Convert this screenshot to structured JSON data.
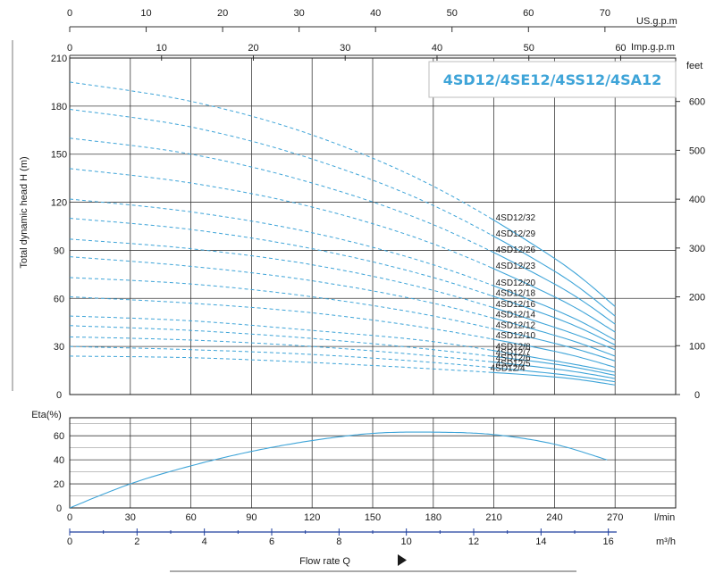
{
  "chart_data": [
    {
      "type": "line",
      "title": "4SD12/4SE12/4SS12/4SA12",
      "ylabel": "Total dynamic head H (m)",
      "ylabel_right": "feet",
      "x_unit": "l/min",
      "xlim": [
        0,
        300
      ],
      "ylim": [
        0,
        210
      ],
      "yticks": [
        0,
        30,
        60,
        90,
        120,
        150,
        180,
        210
      ],
      "feet_ticks": [
        0,
        100,
        200,
        300,
        400,
        500,
        600
      ],
      "us_gpm": {
        "label": "US.g.p.m",
        "ticks": [
          0,
          10,
          20,
          30,
          40,
          50,
          60,
          70
        ]
      },
      "imp_gpm": {
        "label": "Imp.g.p.m",
        "ticks": [
          0,
          10,
          20,
          30,
          40,
          50,
          60
        ]
      },
      "grid": true,
      "dashed_below_x": 210,
      "series_color": "#3ea4d8",
      "series": [
        {
          "name": "4SD12/32",
          "x": [
            0,
            60,
            120,
            180,
            240,
            270
          ],
          "y": [
            195,
            183,
            162,
            130,
            85,
            55
          ]
        },
        {
          "name": "4SD12/29",
          "x": [
            0,
            60,
            120,
            180,
            240,
            270
          ],
          "y": [
            178,
            167,
            147,
            118,
            77,
            49
          ]
        },
        {
          "name": "4SD12/26",
          "x": [
            0,
            60,
            120,
            180,
            240,
            270
          ],
          "y": [
            160,
            150,
            132,
            106,
            69,
            44
          ]
        },
        {
          "name": "4SD12/23",
          "x": [
            0,
            60,
            120,
            180,
            240,
            270
          ],
          "y": [
            141,
            132,
            117,
            94,
            61,
            39
          ]
        },
        {
          "name": "4SD12/20",
          "x": [
            0,
            60,
            120,
            180,
            240,
            270
          ],
          "y": [
            122,
            114,
            101,
            81,
            53,
            34
          ]
        },
        {
          "name": "4SD12/18",
          "x": [
            0,
            60,
            120,
            180,
            240,
            270
          ],
          "y": [
            110,
            103,
            91,
            73,
            48,
            31
          ]
        },
        {
          "name": "4SD12/16",
          "x": [
            0,
            60,
            120,
            180,
            240,
            270
          ],
          "y": [
            97,
            91,
            81,
            65,
            42,
            28
          ]
        },
        {
          "name": "4SD12/14",
          "x": [
            0,
            60,
            120,
            180,
            240,
            270
          ],
          "y": [
            86,
            80,
            71,
            57,
            37,
            24
          ]
        },
        {
          "name": "4SD12/12",
          "x": [
            0,
            60,
            120,
            180,
            240,
            270
          ],
          "y": [
            73,
            69,
            61,
            49,
            32,
            21
          ]
        },
        {
          "name": "4SD12/10",
          "x": [
            0,
            60,
            120,
            180,
            240,
            270
          ],
          "y": [
            61,
            57,
            51,
            41,
            27,
            17
          ]
        },
        {
          "name": "4SD12/8",
          "x": [
            0,
            60,
            120,
            180,
            240,
            270
          ],
          "y": [
            49,
            46,
            40,
            33,
            21,
            14
          ]
        },
        {
          "name": "4SD12/7",
          "x": [
            0,
            60,
            120,
            180,
            240,
            270
          ],
          "y": [
            43,
            40,
            35,
            28,
            19,
            12
          ]
        },
        {
          "name": "4SD12/6",
          "x": [
            0,
            60,
            120,
            180,
            240,
            270
          ],
          "y": [
            36,
            34,
            30,
            24,
            16,
            10
          ]
        },
        {
          "name": "4SD12/5",
          "x": [
            0,
            60,
            120,
            180,
            240,
            270
          ],
          "y": [
            30,
            28,
            25,
            20,
            13,
            8
          ]
        },
        {
          "name": "4SD12/4",
          "x": [
            0,
            60,
            120,
            180,
            240,
            270
          ],
          "y": [
            24,
            23,
            20,
            16,
            11,
            6
          ]
        }
      ]
    },
    {
      "type": "line",
      "ylabel": "Eta(%)",
      "xlabel": "Flow rate Q",
      "x_unit": "l/min",
      "x_unit_m3h": "m³/h",
      "xlim": [
        0,
        300
      ],
      "ylim": [
        0,
        70
      ],
      "yticks": [
        0,
        20,
        40,
        60
      ],
      "xticks": [
        0,
        30,
        60,
        90,
        120,
        150,
        180,
        210,
        240,
        270
      ],
      "m3h_ticks": [
        0,
        2,
        4,
        6,
        8,
        10,
        12,
        14,
        16
      ],
      "grid": true,
      "series": [
        {
          "x": [
            0,
            30,
            60,
            90,
            120,
            150,
            180,
            210,
            240,
            266
          ],
          "y": [
            0,
            20,
            35,
            47,
            56,
            62,
            63,
            61,
            53,
            40
          ]
        }
      ]
    }
  ]
}
